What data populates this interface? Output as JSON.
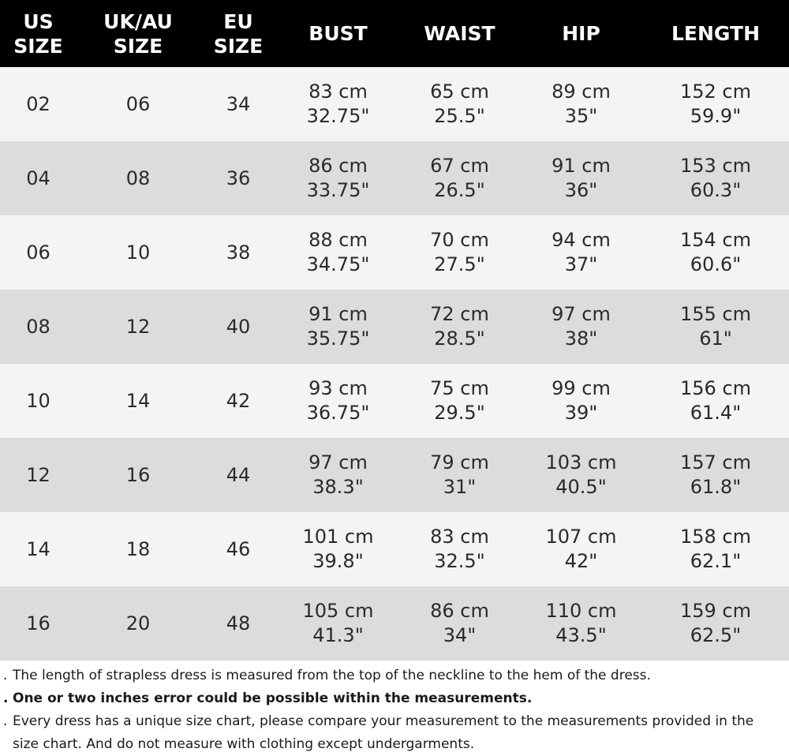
{
  "headers": [
    [
      "US",
      "SIZE"
    ],
    [
      "UK/AU",
      "SIZE"
    ],
    [
      "EU",
      "SIZE"
    ],
    [
      "BUST"
    ],
    [
      "WAIST"
    ],
    [
      "HIP"
    ],
    [
      "LENGTH"
    ]
  ],
  "rows": [
    {
      "us": "02",
      "uk": "06",
      "eu": "34",
      "bust": [
        "83 cm",
        "32.75\""
      ],
      "waist": [
        "65 cm",
        "25.5\""
      ],
      "hip": [
        "89 cm",
        "35\""
      ],
      "length": [
        "152 cm",
        "59.9\""
      ]
    },
    {
      "us": "04",
      "uk": "08",
      "eu": "36",
      "bust": [
        "86 cm",
        "33.75\""
      ],
      "waist": [
        "67 cm",
        "26.5\""
      ],
      "hip": [
        "91 cm",
        "36\""
      ],
      "length": [
        "153 cm",
        "60.3\""
      ]
    },
    {
      "us": "06",
      "uk": "10",
      "eu": "38",
      "bust": [
        "88 cm",
        "34.75\""
      ],
      "waist": [
        "70 cm",
        "27.5\""
      ],
      "hip": [
        "94 cm",
        "37\""
      ],
      "length": [
        "154 cm",
        "60.6\""
      ]
    },
    {
      "us": "08",
      "uk": "12",
      "eu": "40",
      "bust": [
        "91 cm",
        "35.75\""
      ],
      "waist": [
        "72 cm",
        "28.5\""
      ],
      "hip": [
        "97 cm",
        "38\""
      ],
      "length": [
        "155 cm",
        "61\""
      ]
    },
    {
      "us": "10",
      "uk": "14",
      "eu": "42",
      "bust": [
        "93 cm",
        "36.75\""
      ],
      "waist": [
        "75 cm",
        "29.5\""
      ],
      "hip": [
        "99 cm",
        "39\""
      ],
      "length": [
        "156 cm",
        "61.4\""
      ]
    },
    {
      "us": "12",
      "uk": "16",
      "eu": "44",
      "bust": [
        "97 cm",
        "38.3\""
      ],
      "waist": [
        "79 cm",
        "31\""
      ],
      "hip": [
        "103 cm",
        "40.5\""
      ],
      "length": [
        "157 cm",
        "61.8\""
      ]
    },
    {
      "us": "14",
      "uk": "18",
      "eu": "46",
      "bust": [
        "101 cm",
        "39.8\""
      ],
      "waist": [
        "83 cm",
        "32.5\""
      ],
      "hip": [
        "107 cm",
        "42\""
      ],
      "length": [
        "158 cm",
        "62.1\""
      ]
    },
    {
      "us": "16",
      "uk": "20",
      "eu": "48",
      "bust": [
        "105 cm",
        "41.3\""
      ],
      "waist": [
        "86 cm",
        "34\""
      ],
      "hip": [
        "110 cm",
        "43.5\""
      ],
      "length": [
        "159 cm",
        "62.5\""
      ]
    }
  ],
  "notes": [
    {
      "bullet": ".",
      "text": "The length of strapless dress is measured from the top of the neckline to the hem of the dress.",
      "bold": false
    },
    {
      "bullet": ".",
      "text": "One or two inches error could be possible within the measurements.",
      "bold": true
    },
    {
      "bullet": ".",
      "text": "Every dress has a unique size chart, please compare your measurement to the measurements provided in the size chart. And do not measure with clothing except undergarments.",
      "bold": false
    }
  ],
  "colors": {
    "header_bg": "#000000",
    "header_text": "#ffffff",
    "row_light": "#f4f4f4",
    "row_dark": "#dcdcdc"
  }
}
